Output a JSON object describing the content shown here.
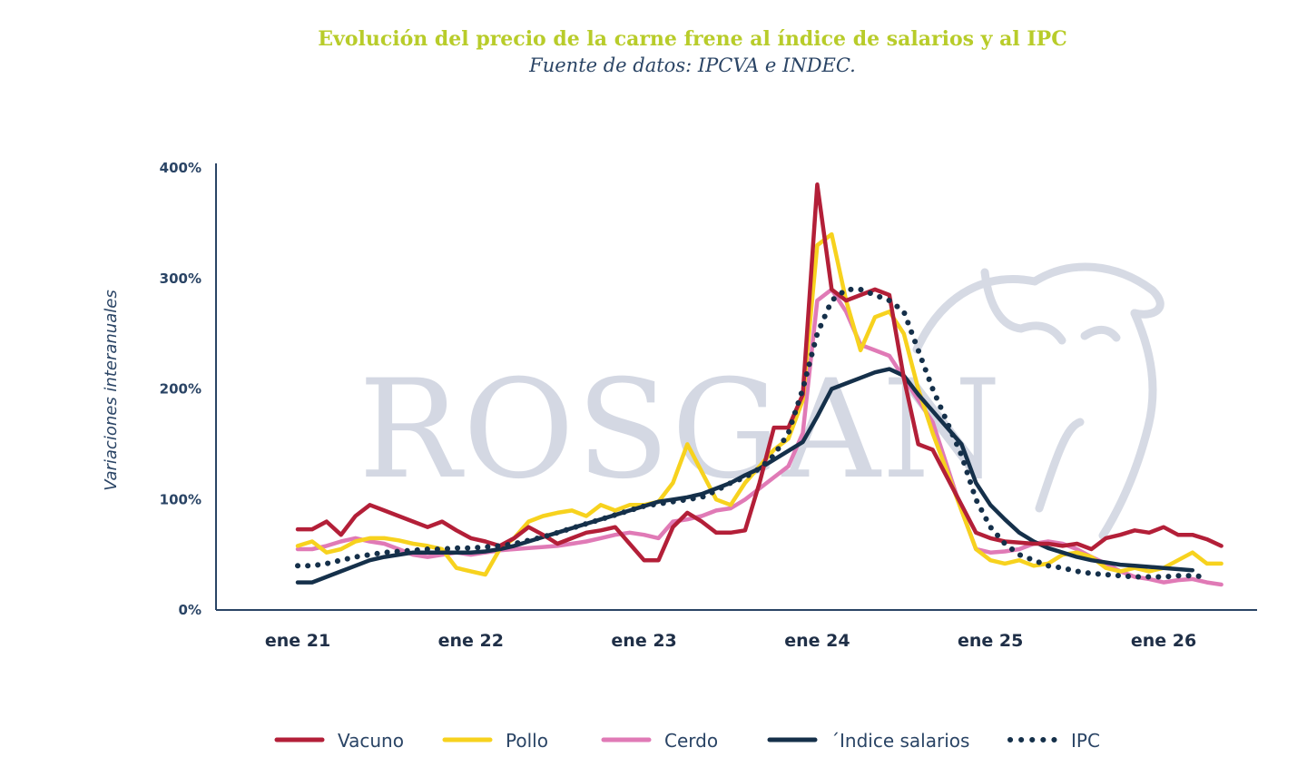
{
  "colors": {
    "Vacuno": "#b31f38",
    "Pollo": "#f7d21e",
    "Cerdo": "#e07ab6",
    "Indice": "#15304a",
    "IPC": "#15304a",
    "title": "#b8cc2a",
    "axis": "#2a4465"
  },
  "chart_data": {
    "type": "line",
    "title": "Evolución del precio de la carne frene al índice de salarios y al IPC",
    "subtitle": "Fuente de datos: IPCVA e INDEC.",
    "ylabel": "Variaciones interanuales",
    "watermark": "ROSGAN",
    "ylim": [
      0,
      400
    ],
    "yticks": [
      0,
      100,
      200,
      300,
      400
    ],
    "ytick_labels": [
      "0%",
      "100%",
      "200%",
      "300%",
      "400%"
    ],
    "xlim": [
      0,
      66
    ],
    "xticks": [
      0,
      12,
      24,
      36,
      48,
      60
    ],
    "xtick_labels": [
      "ene 21",
      "ene 22",
      "ene 23",
      "ene 24",
      "ene 25",
      "ene 26"
    ],
    "x_unit": "months since ene 21",
    "legend_position": "bottom",
    "series": [
      {
        "name": "Vacuno",
        "key": "Vacuno",
        "style": "solid",
        "x": [
          0,
          1,
          2,
          3,
          4,
          5,
          6,
          7,
          8,
          9,
          10,
          11,
          12,
          13,
          14,
          15,
          16,
          17,
          18,
          19,
          20,
          21,
          22,
          23,
          24,
          25,
          26,
          27,
          28,
          29,
          30,
          31,
          32,
          33,
          34,
          35,
          36,
          37,
          38,
          39,
          40,
          41,
          42,
          43,
          44,
          45,
          46,
          47,
          48,
          49,
          50,
          51,
          52,
          53,
          54,
          55,
          56,
          57,
          58,
          59,
          60,
          61,
          62,
          63,
          64
        ],
        "values": [
          73,
          73,
          80,
          68,
          85,
          95,
          90,
          85,
          80,
          75,
          80,
          72,
          65,
          62,
          58,
          65,
          75,
          68,
          60,
          65,
          70,
          72,
          75,
          60,
          45,
          45,
          75,
          88,
          80,
          70,
          70,
          72,
          115,
          165,
          165,
          195,
          385,
          290,
          280,
          285,
          290,
          285,
          210,
          150,
          145,
          120,
          95,
          70,
          65,
          62,
          61,
          60,
          60,
          58,
          60,
          55,
          65,
          68,
          72,
          70,
          75,
          68,
          68,
          64,
          58
        ]
      },
      {
        "name": "Pollo",
        "key": "Pollo",
        "style": "solid",
        "x": [
          0,
          1,
          2,
          3,
          4,
          5,
          6,
          7,
          8,
          9,
          10,
          11,
          12,
          13,
          14,
          15,
          16,
          17,
          18,
          19,
          20,
          21,
          22,
          23,
          24,
          25,
          26,
          27,
          28,
          29,
          30,
          31,
          32,
          33,
          34,
          35,
          36,
          37,
          38,
          39,
          40,
          41,
          42,
          43,
          44,
          45,
          46,
          47,
          48,
          49,
          50,
          51,
          52,
          53,
          54,
          55,
          56,
          57,
          58,
          59,
          60,
          61,
          62,
          63,
          64
        ],
        "values": [
          58,
          62,
          52,
          55,
          62,
          65,
          65,
          63,
          60,
          58,
          55,
          38,
          35,
          32,
          55,
          65,
          80,
          85,
          88,
          90,
          85,
          95,
          90,
          95,
          95,
          98,
          115,
          150,
          125,
          100,
          95,
          115,
          130,
          145,
          155,
          190,
          330,
          340,
          280,
          235,
          265,
          270,
          250,
          200,
          160,
          125,
          90,
          55,
          45,
          42,
          45,
          40,
          42,
          50,
          52,
          48,
          38,
          35,
          38,
          35,
          38,
          45,
          52,
          42,
          42
        ]
      },
      {
        "name": "Cerdo",
        "key": "Cerdo",
        "style": "solid",
        "x": [
          0,
          1,
          2,
          3,
          4,
          5,
          6,
          7,
          8,
          9,
          10,
          11,
          12,
          13,
          14,
          15,
          16,
          17,
          18,
          19,
          20,
          21,
          22,
          23,
          24,
          25,
          26,
          27,
          28,
          29,
          30,
          31,
          32,
          33,
          34,
          35,
          36,
          37,
          38,
          39,
          40,
          41,
          42,
          43,
          44,
          45,
          46,
          47,
          48,
          49,
          50,
          51,
          52,
          53,
          54,
          55,
          56,
          57,
          58,
          59,
          60,
          61,
          62,
          63,
          64
        ],
        "values": [
          55,
          55,
          58,
          62,
          65,
          62,
          60,
          55,
          50,
          48,
          50,
          52,
          50,
          52,
          54,
          55,
          56,
          57,
          58,
          60,
          62,
          65,
          68,
          70,
          68,
          65,
          80,
          82,
          85,
          90,
          92,
          100,
          110,
          120,
          130,
          160,
          280,
          290,
          270,
          240,
          235,
          230,
          210,
          190,
          170,
          130,
          90,
          55,
          52,
          53,
          55,
          60,
          62,
          60,
          55,
          48,
          42,
          35,
          30,
          28,
          25,
          27,
          28,
          25,
          23
        ]
      },
      {
        "name": "´Indice salarios",
        "key": "Indice",
        "style": "solid",
        "x": [
          0,
          1,
          2,
          3,
          4,
          5,
          6,
          7,
          8,
          9,
          10,
          11,
          12,
          13,
          14,
          15,
          16,
          17,
          18,
          19,
          20,
          21,
          22,
          23,
          24,
          25,
          26,
          27,
          28,
          29,
          30,
          31,
          32,
          33,
          34,
          35,
          36,
          37,
          38,
          39,
          40,
          41,
          42,
          43,
          44,
          45,
          46,
          47,
          48,
          49,
          50,
          51,
          52,
          53,
          54,
          55,
          56,
          57,
          58,
          59,
          60,
          61,
          62
        ],
        "values": [
          25,
          25,
          30,
          35,
          40,
          45,
          48,
          50,
          52,
          52,
          52,
          52,
          52,
          53,
          55,
          58,
          62,
          66,
          70,
          74,
          78,
          82,
          86,
          90,
          94,
          98,
          100,
          102,
          105,
          110,
          115,
          122,
          128,
          136,
          144,
          152,
          175,
          200,
          205,
          210,
          215,
          218,
          212,
          195,
          180,
          165,
          150,
          115,
          95,
          82,
          70,
          62,
          56,
          52,
          48,
          45,
          43,
          41,
          40,
          39,
          38,
          37,
          36
        ]
      },
      {
        "name": "IPC",
        "key": "IPC",
        "style": "dotted",
        "x": [
          0,
          1,
          2,
          3,
          4,
          5,
          6,
          7,
          8,
          9,
          10,
          11,
          12,
          13,
          14,
          15,
          16,
          17,
          18,
          19,
          20,
          21,
          22,
          23,
          24,
          25,
          26,
          27,
          28,
          29,
          30,
          31,
          32,
          33,
          34,
          35,
          36,
          37,
          38,
          39,
          40,
          41,
          42,
          43,
          44,
          45,
          46,
          47,
          48,
          49,
          50,
          51,
          52,
          53,
          54,
          55,
          56,
          57,
          58,
          59,
          60,
          61,
          62,
          63
        ],
        "values": [
          40,
          40,
          42,
          45,
          48,
          50,
          52,
          53,
          54,
          55,
          55,
          56,
          56,
          57,
          58,
          60,
          63,
          66,
          70,
          74,
          78,
          82,
          86,
          90,
          94,
          96,
          98,
          100,
          102,
          108,
          115,
          120,
          128,
          140,
          160,
          200,
          250,
          280,
          290,
          290,
          285,
          280,
          270,
          235,
          200,
          170,
          140,
          100,
          75,
          60,
          50,
          45,
          40,
          38,
          35,
          33,
          32,
          31,
          30,
          30,
          30,
          31,
          31,
          30
        ]
      }
    ]
  }
}
